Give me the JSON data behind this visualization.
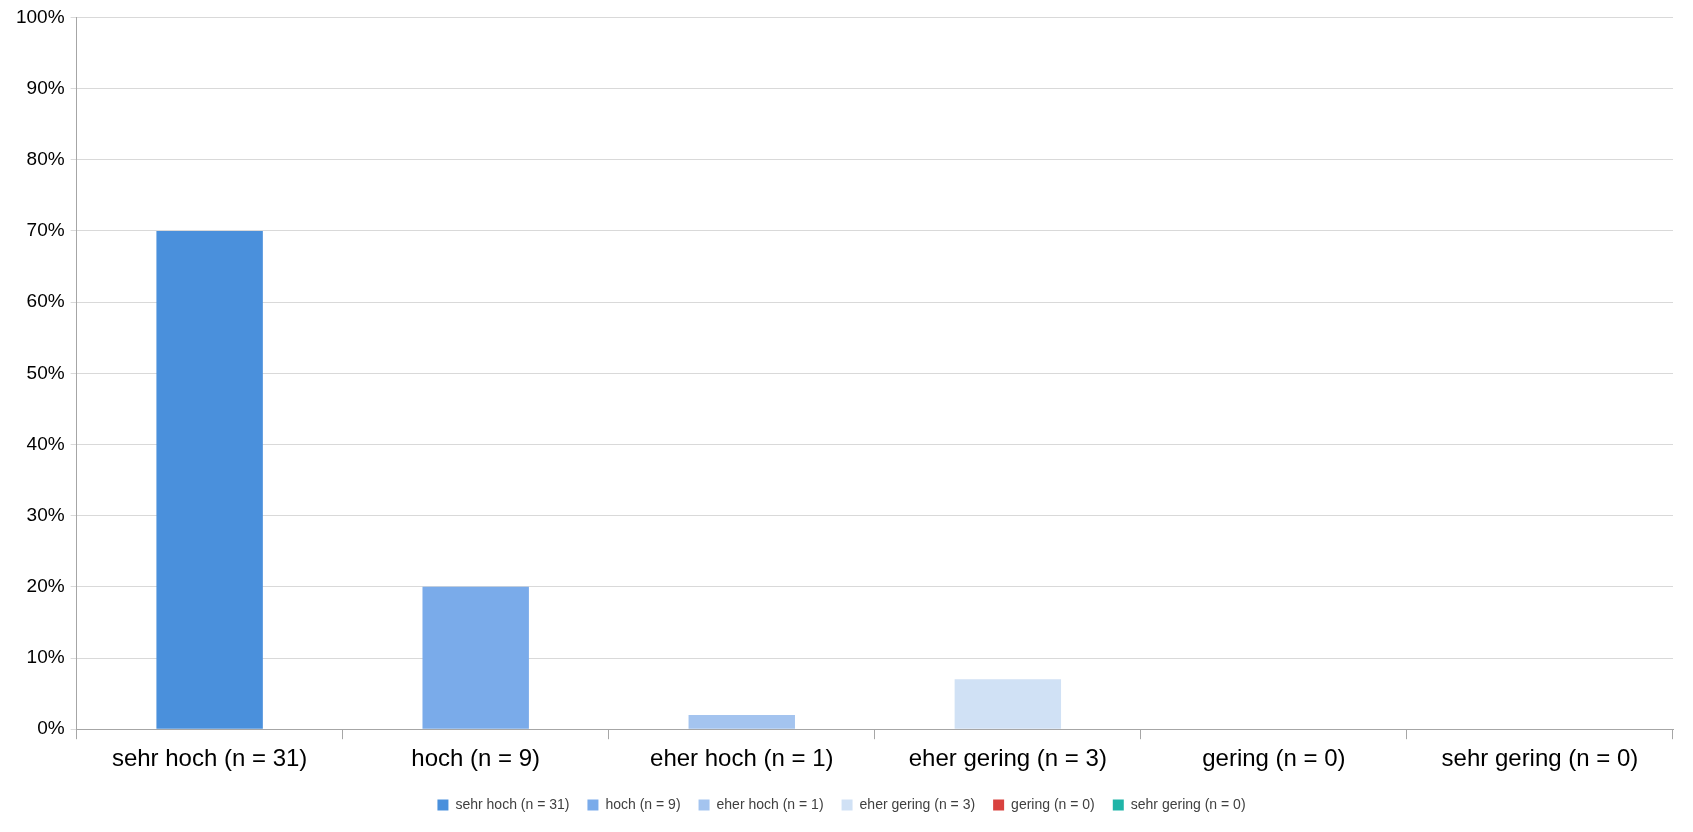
{
  "chart_data": {
    "type": "bar",
    "categories": [
      "sehr hoch (n = 31)",
      "hoch (n = 9)",
      "eher hoch (n = 1)",
      "eher gering (n = 3)",
      "gering (n = 0)",
      "sehr gering (n = 0)"
    ],
    "series": [
      {
        "name": "sehr hoch (n = 31)",
        "color": "#4a90dc",
        "values": [
          70,
          null,
          null,
          null,
          null,
          null
        ]
      },
      {
        "name": "hoch (n = 9)",
        "color": "#7aabea",
        "values": [
          null,
          20,
          null,
          null,
          null,
          null
        ]
      },
      {
        "name": "eher hoch (n = 1)",
        "color": "#a4c4ef",
        "values": [
          null,
          null,
          2,
          null,
          null,
          null
        ]
      },
      {
        "name": "eher gering (n = 3)",
        "color": "#d0e1f5",
        "values": [
          null,
          null,
          null,
          7,
          null,
          null
        ]
      },
      {
        "name": "gering (n = 0)",
        "color": "#d9423f",
        "values": [
          null,
          null,
          null,
          null,
          0,
          null
        ]
      },
      {
        "name": "sehr gering (n = 0)",
        "color": "#1fb5a8",
        "values": [
          null,
          null,
          null,
          null,
          null,
          0
        ]
      }
    ],
    "ylim": [
      0,
      100
    ],
    "yticks": [
      {
        "value": 0,
        "label": "0%"
      },
      {
        "value": 10,
        "label": "10%"
      },
      {
        "value": 20,
        "label": "20%"
      },
      {
        "value": 30,
        "label": "30%"
      },
      {
        "value": 40,
        "label": "40%"
      },
      {
        "value": 50,
        "label": "50%"
      },
      {
        "value": 60,
        "label": "60%"
      },
      {
        "value": 70,
        "label": "70%"
      },
      {
        "value": 80,
        "label": "80%"
      },
      {
        "value": 90,
        "label": "90%"
      },
      {
        "value": 100,
        "label": "100%"
      }
    ],
    "grid": "y",
    "legend": "bottom"
  }
}
